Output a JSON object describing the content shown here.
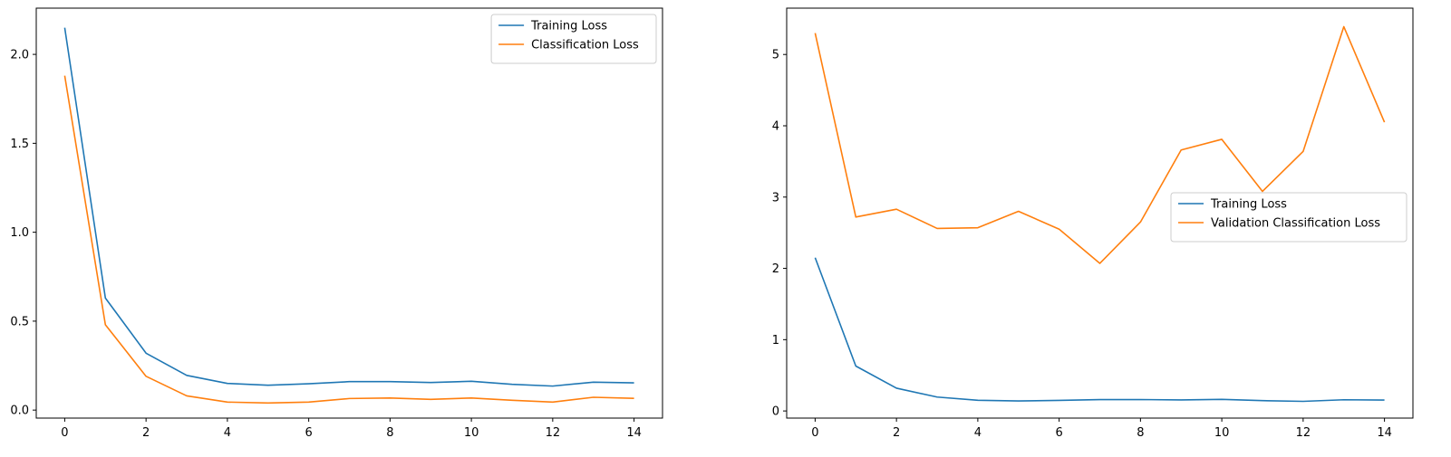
{
  "chart_data": [
    {
      "type": "line",
      "x": [
        0,
        1,
        2,
        3,
        4,
        5,
        6,
        7,
        8,
        9,
        10,
        11,
        12,
        13,
        14
      ],
      "xlim": [
        -0.7,
        14.7
      ],
      "ylim": [
        -0.045,
        2.26
      ],
      "xticks": [
        0,
        2,
        4,
        6,
        8,
        10,
        12,
        14
      ],
      "yticks": [
        0.0,
        0.5,
        1.0,
        1.5,
        2.0
      ],
      "ytick_labels": [
        "0.0",
        "0.5",
        "1.0",
        "1.5",
        "2.0"
      ],
      "title": "",
      "xlabel": "",
      "ylabel": "",
      "grid": false,
      "legend": "upper right",
      "series": [
        {
          "name": "Training Loss",
          "color": "#1f77b4",
          "values": [
            2.15,
            0.63,
            0.32,
            0.195,
            0.15,
            0.14,
            0.148,
            0.16,
            0.16,
            0.155,
            0.162,
            0.145,
            0.135,
            0.157,
            0.153
          ]
        },
        {
          "name": "Classification Loss",
          "color": "#ff7f0e",
          "values": [
            1.88,
            0.48,
            0.19,
            0.08,
            0.045,
            0.04,
            0.045,
            0.065,
            0.068,
            0.06,
            0.068,
            0.055,
            0.045,
            0.072,
            0.066
          ]
        }
      ]
    },
    {
      "type": "line",
      "x": [
        0,
        1,
        2,
        3,
        4,
        5,
        6,
        7,
        8,
        9,
        10,
        11,
        12,
        13,
        14
      ],
      "xlim": [
        -0.7,
        14.7
      ],
      "ylim": [
        -0.1,
        5.65
      ],
      "xticks": [
        0,
        2,
        4,
        6,
        8,
        10,
        12,
        14
      ],
      "yticks": [
        0,
        1,
        2,
        3,
        4,
        5
      ],
      "ytick_labels": [
        "0",
        "1",
        "2",
        "3",
        "4",
        "5"
      ],
      "title": "",
      "xlabel": "",
      "ylabel": "",
      "grid": false,
      "legend": "center right",
      "series": [
        {
          "name": "Training Loss",
          "color": "#1f77b4",
          "values": [
            2.15,
            0.63,
            0.32,
            0.195,
            0.15,
            0.14,
            0.148,
            0.16,
            0.16,
            0.155,
            0.162,
            0.145,
            0.135,
            0.157,
            0.153
          ]
        },
        {
          "name": "Validation Classification Loss",
          "color": "#ff7f0e",
          "values": [
            5.3,
            2.72,
            2.83,
            2.56,
            2.57,
            2.8,
            2.55,
            2.07,
            2.65,
            3.66,
            3.81,
            3.08,
            3.64,
            5.39,
            4.05
          ]
        }
      ]
    }
  ]
}
